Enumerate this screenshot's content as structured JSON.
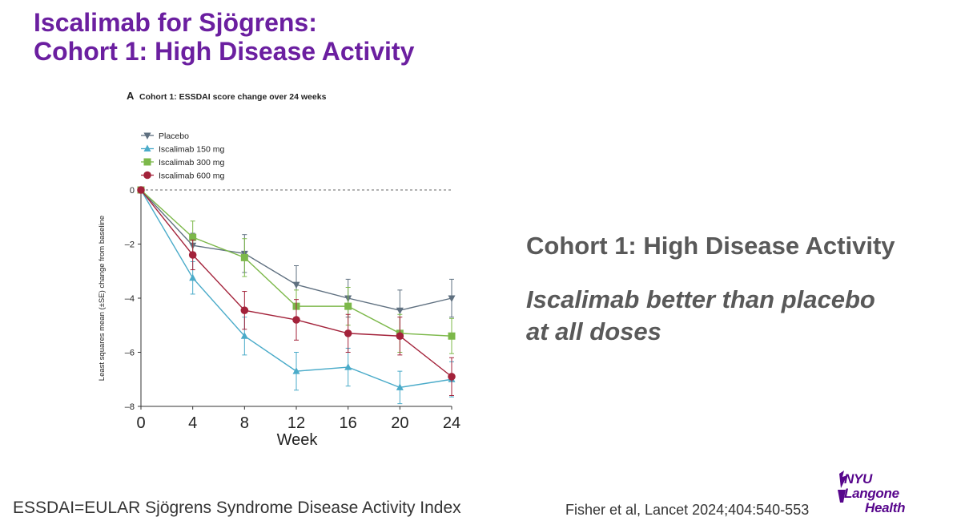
{
  "title": {
    "line1": "Iscalimab for Sjögrens:",
    "line2": "Cohort 1: High Disease Activity"
  },
  "colors": {
    "title": "#6b1fa0",
    "body_text": "#595959",
    "logo": "#57068c"
  },
  "chart_data": {
    "type": "line",
    "panel_label": "A",
    "title": "Cohort 1: ESSDAI score change over 24 weeks",
    "xlabel": "Week",
    "ylabel": "Least squares mean (±SE) change from baseline",
    "x": [
      0,
      4,
      8,
      12,
      16,
      20,
      24
    ],
    "xticks": [
      "0",
      "4",
      "8",
      "12",
      "16",
      "20",
      "24"
    ],
    "yticks": [
      "0",
      "–2",
      "–4",
      "–6",
      "–8"
    ],
    "ytick_values": [
      0,
      -2,
      -4,
      -6,
      -8
    ],
    "xlim": [
      0,
      24
    ],
    "ylim": [
      -8,
      0
    ],
    "reference_line": 0,
    "series": [
      {
        "name": "Placebo",
        "color": "#5f7080",
        "marker": "triangle-down",
        "values": [
          0,
          -2.05,
          -2.35,
          -3.5,
          -4.0,
          -4.45,
          -4.0
        ],
        "se": [
          0,
          0.45,
          0.7,
          0.7,
          0.7,
          0.75,
          0.7
        ]
      },
      {
        "name": "Iscalimab 150 mg",
        "color": "#4aabc9",
        "marker": "triangle-up",
        "values": [
          0,
          -3.25,
          -5.4,
          -6.7,
          -6.55,
          -7.3,
          -7.0
        ],
        "se": [
          0,
          0.6,
          0.7,
          0.7,
          0.7,
          0.6,
          0.65
        ]
      },
      {
        "name": "Iscalimab 300 mg",
        "color": "#7cb84a",
        "marker": "square",
        "values": [
          0,
          -1.75,
          -2.5,
          -4.3,
          -4.3,
          -5.3,
          -5.4
        ],
        "se": [
          0,
          0.6,
          0.7,
          0.6,
          0.7,
          0.7,
          0.65
        ]
      },
      {
        "name": "Iscalimab 600 mg",
        "color": "#a3223a",
        "marker": "circle",
        "values": [
          0,
          -2.4,
          -4.45,
          -4.8,
          -5.3,
          -5.4,
          -6.9
        ],
        "se": [
          0,
          0.55,
          0.7,
          0.75,
          0.7,
          0.7,
          0.7
        ]
      }
    ]
  },
  "right": {
    "heading": "Cohort 1: High Disease Activity",
    "sub1": "Iscalimab better than placebo",
    "sub2": "at all doses"
  },
  "footnote": "ESSDAI=EULAR Sjögrens Syndrome Disease Activity Index",
  "citation": "Fisher et al, Lancet 2024;404:540-553",
  "logo": {
    "line1": "NYU Langone",
    "line2": "Health"
  }
}
